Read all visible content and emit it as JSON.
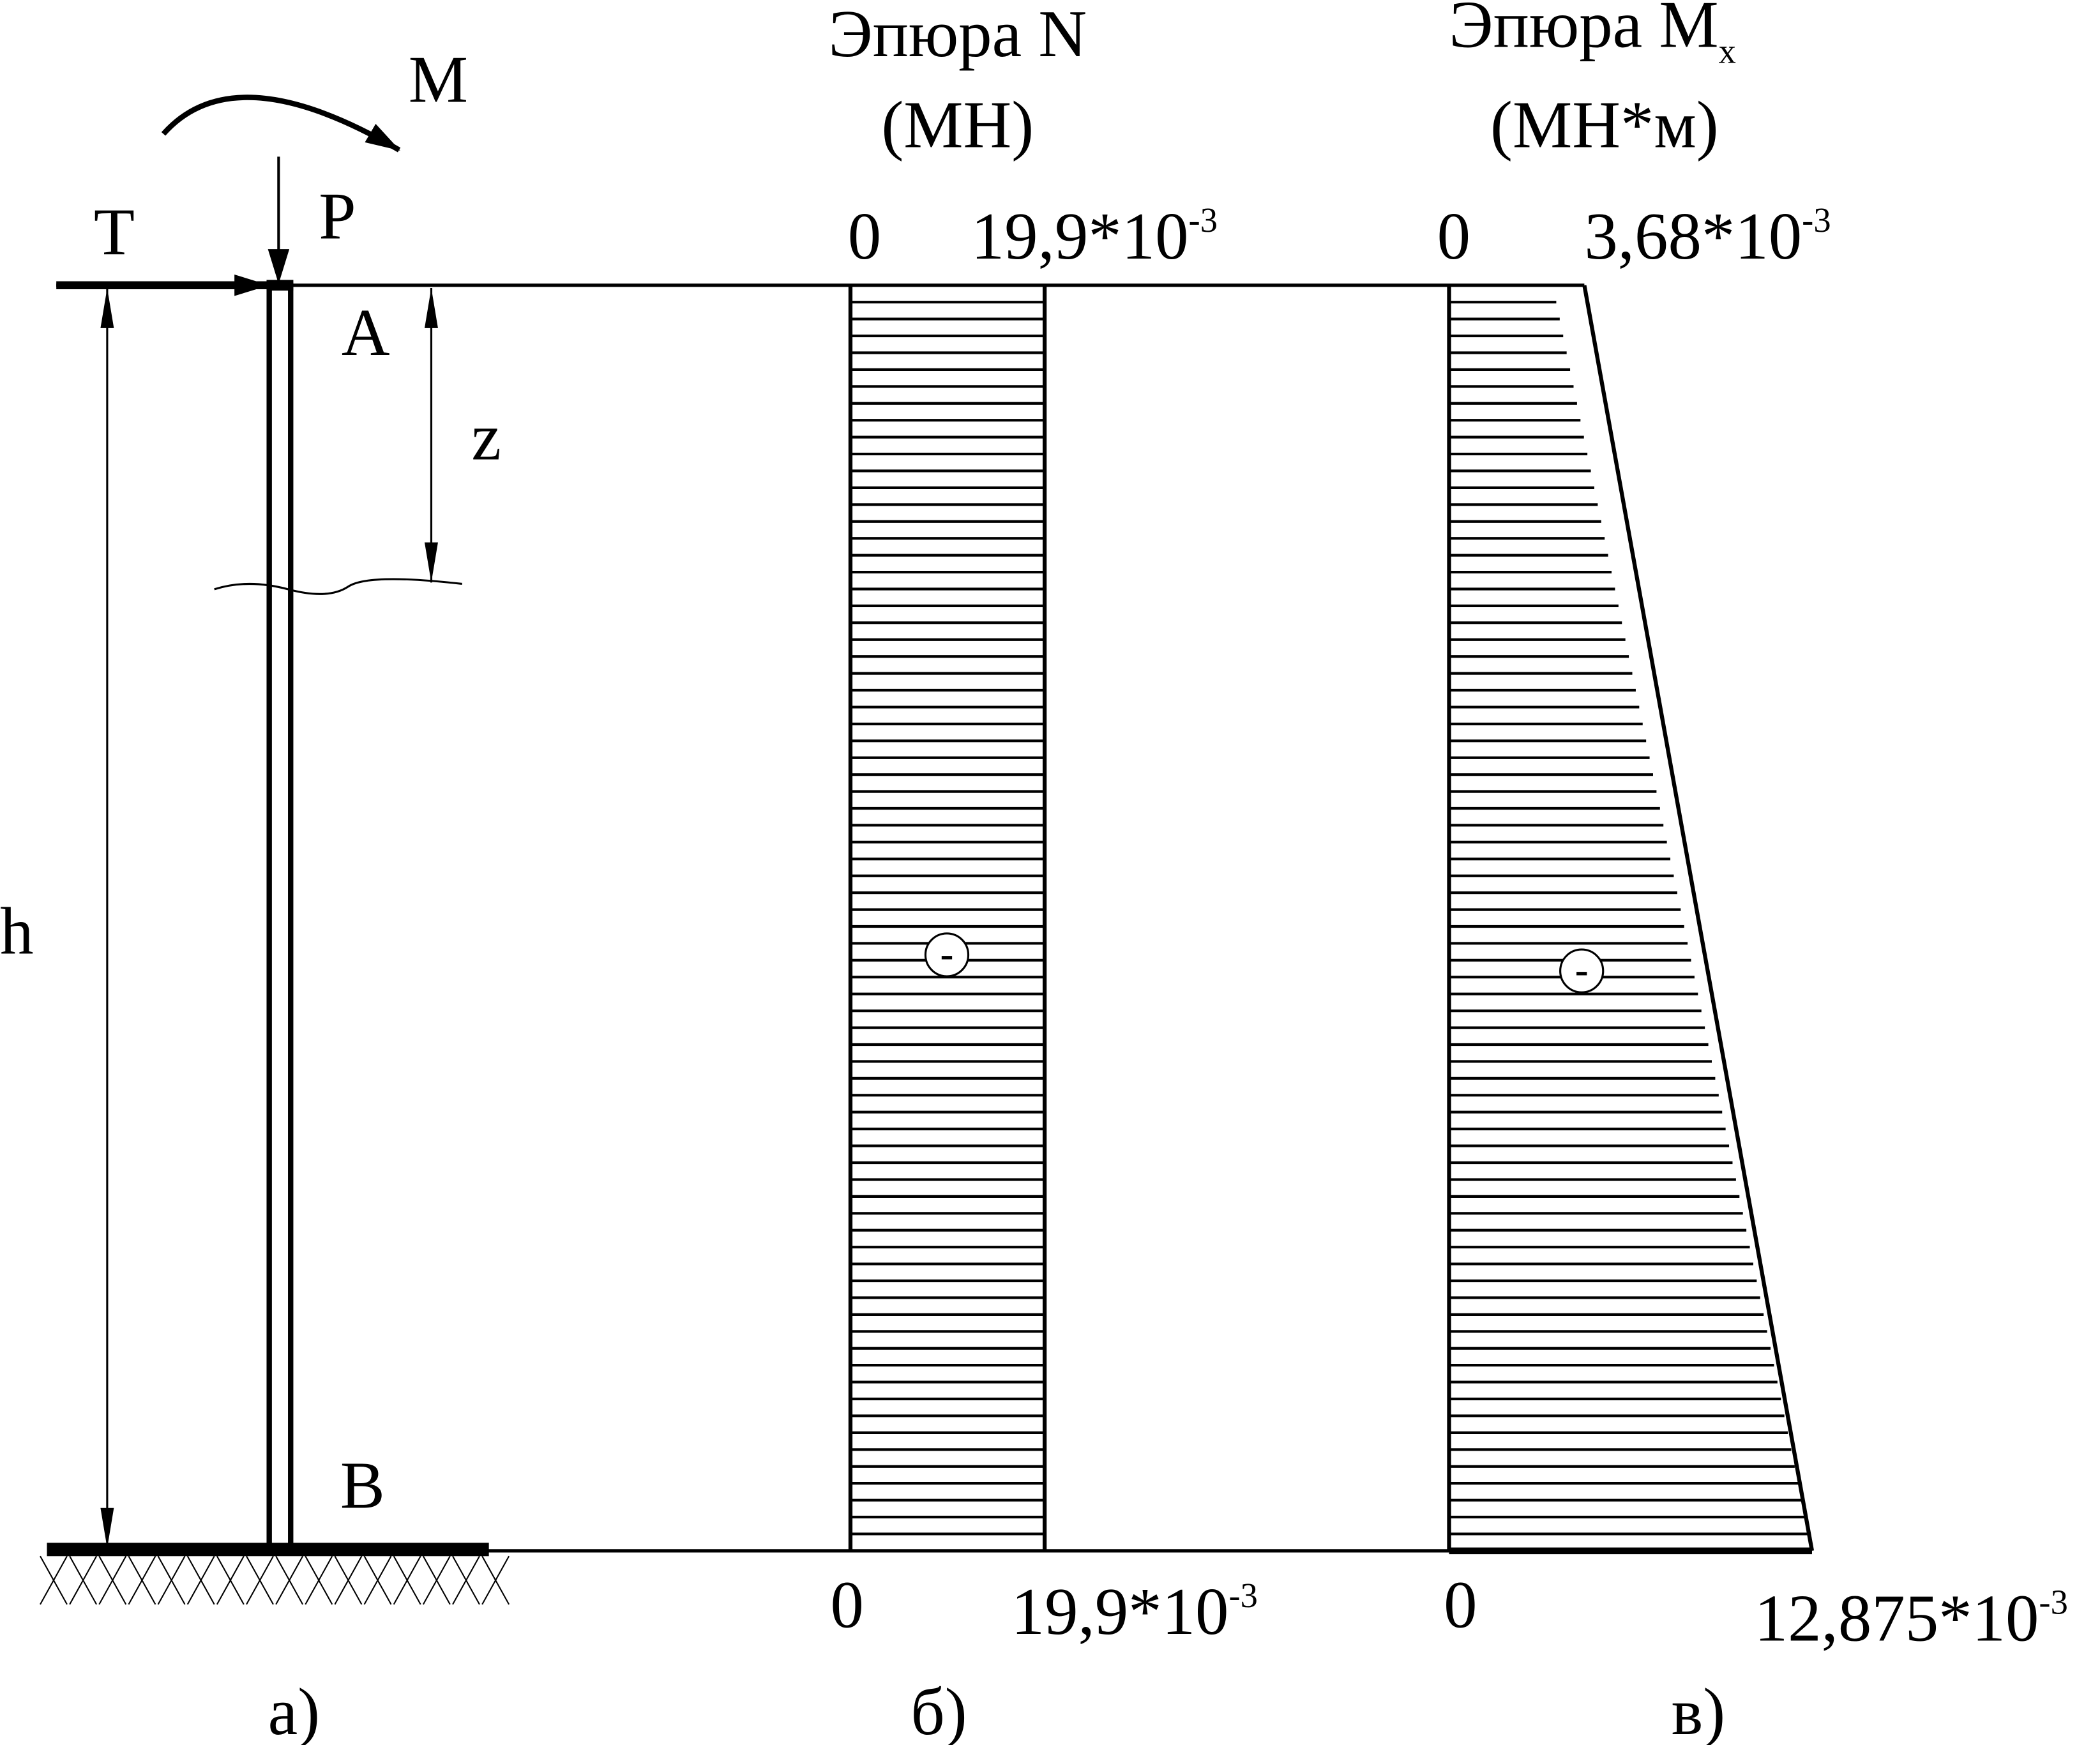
{
  "scheme": {
    "labels": {
      "moment": "M",
      "shear": "T",
      "force": "P",
      "top_point": "A",
      "bottom_point": "B",
      "coordinate": "z",
      "height": "h"
    },
    "caption": "а)"
  },
  "epure_n": {
    "title": "Эпюра N",
    "units": "(МН)",
    "top_zero": "0",
    "top_value": "19,9*10",
    "top_exp": "-3",
    "bottom_zero": "0",
    "bottom_value": "19,9*10",
    "bottom_exp": "-3",
    "sign": "-",
    "caption": "б)",
    "value_top": 19.9,
    "value_bottom": 19.9
  },
  "epure_m": {
    "title": "Эпюра M",
    "title_sub": "x",
    "units": "(МН*м)",
    "top_zero": "0",
    "top_value": "3,68*10",
    "top_exp": "-3",
    "bottom_zero": "0",
    "bottom_value": "12,875*10",
    "bottom_exp": "-3",
    "sign": "-",
    "caption": "в)",
    "value_top": 3.68,
    "value_bottom": 12.875
  },
  "colors": {
    "ink": "#000000",
    "background": "#ffffff"
  }
}
